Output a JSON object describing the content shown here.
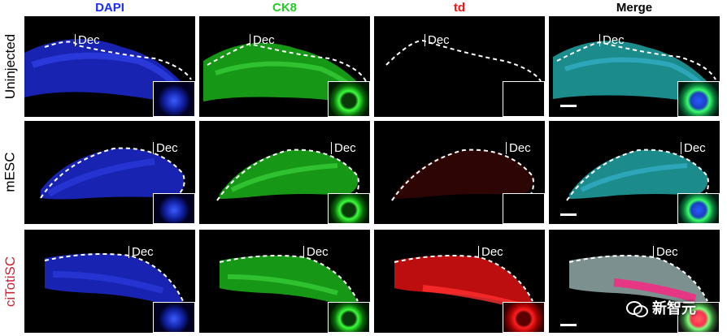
{
  "columns": [
    {
      "label": "DAPI",
      "color": "#1a2cff"
    },
    {
      "label": "CK8",
      "color": "#22cc22"
    },
    {
      "label": "td",
      "color": "#ff1111"
    },
    {
      "label": "Merge",
      "color": "#000000"
    }
  ],
  "rows": [
    {
      "label": "Uninjected",
      "color": "#000000"
    },
    {
      "label": "mESC",
      "color": "#000000"
    },
    {
      "label": "ciTotiSC",
      "color": "#cc2233"
    }
  ],
  "annotation": "Dec",
  "watermark": "新智元"
}
